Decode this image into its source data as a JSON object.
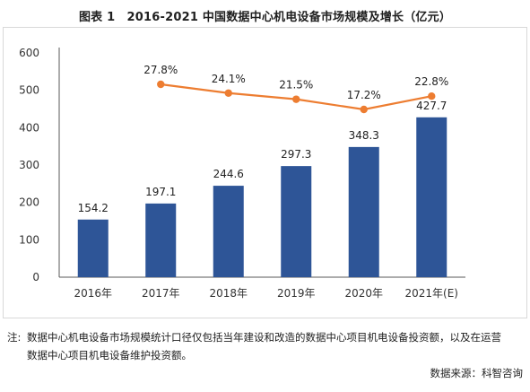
{
  "title": "图表 1　2016-2021 中国数据中心机电设备市场规模及增长（亿元）",
  "chart_data": {
    "type": "bar",
    "categories": [
      "2016年",
      "2017年",
      "2018年",
      "2019年",
      "2020年",
      "2021年(E)"
    ],
    "series": [
      {
        "values": [
          154.2,
          197.1,
          244.6,
          297.3,
          348.3,
          427.7
        ],
        "color": "#2e5597"
      },
      {
        "type": "line",
        "values": [
          null,
          27.8,
          24.1,
          21.5,
          17.2,
          22.8
        ],
        "value_labels": [
          null,
          "27.8%",
          "24.1%",
          "21.5%",
          "17.2%",
          "22.8%"
        ],
        "color": "#ed7d31"
      }
    ],
    "ylim": [
      0,
      600
    ],
    "yticks": [
      0,
      100,
      200,
      300,
      400,
      500,
      600
    ],
    "grid": false,
    "legend": "none"
  },
  "note": {
    "prefix": "注:",
    "line1": "数据中心机电设备市场规模统计口径仅包括当年建设和改造的数据中心项目机电设备投资额，以及在运营",
    "line2": "数据中心项目机电设备维护投资额。"
  },
  "source": "数据来源：科智咨询"
}
